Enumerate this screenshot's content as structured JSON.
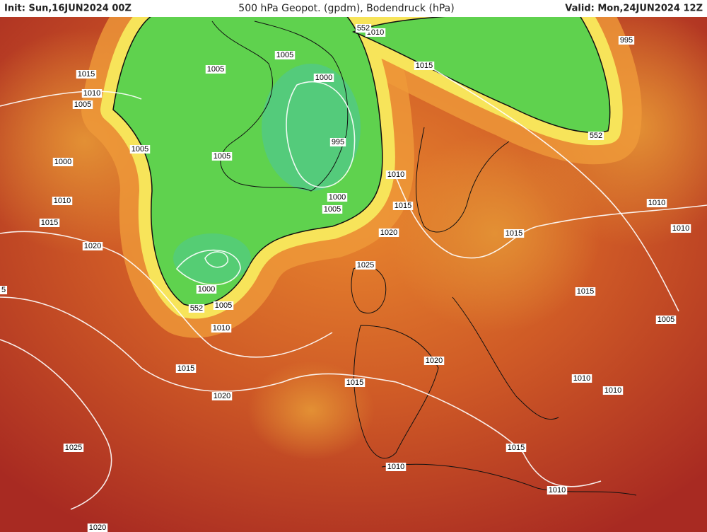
{
  "header": {
    "init": "Init: Sun,16JUN2024 00Z",
    "title": "500 hPa Geopot. (gpdm), Bodendruck (hPa)",
    "valid": "Valid: Mon,24JUN2024 12Z"
  },
  "labels": [
    "1015",
    "1010",
    "1005",
    "1005",
    "1005",
    "1000",
    "995",
    "1005",
    "1005",
    "1000",
    "1010",
    "1015",
    "1020",
    "1000",
    "1005",
    "1010",
    "1015",
    "1020",
    "1025",
    "1000",
    "1005",
    "1010",
    "1015",
    "1020",
    "1015",
    "1020",
    "1025",
    "1015",
    "1010",
    "1010",
    "1010",
    "552",
    "552",
    "552",
    "1015",
    "995",
    "1010",
    "1010",
    "1015",
    "1015",
    "1005",
    "1010",
    "1010",
    "1020",
    "5"
  ]
}
